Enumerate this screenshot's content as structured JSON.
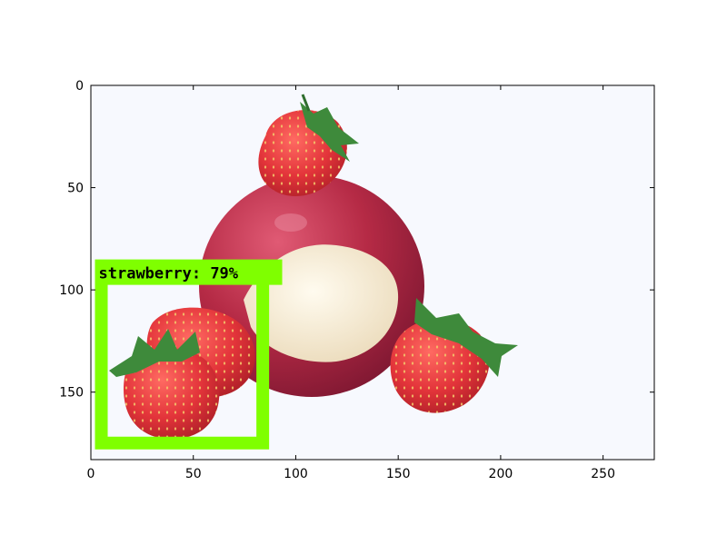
{
  "image": {
    "width_units": 275,
    "height_units": 183,
    "background_color": "#F7F9FE",
    "description_colors": {
      "apple_red": "#B52A45",
      "apple_flesh": "#F6EBD3",
      "strawberry_red": "#E3343A",
      "leaf_green": "#3E8A3B"
    }
  },
  "axes": {
    "x_range": [
      0,
      275
    ],
    "y_range": [
      183,
      0
    ],
    "x_ticks": [
      0,
      50,
      100,
      150,
      200,
      250
    ],
    "y_ticks": [
      0,
      50,
      100,
      150
    ],
    "x_tick_labels": [
      "0",
      "50",
      "100",
      "150",
      "200",
      "250"
    ],
    "y_tick_labels": [
      "0",
      "50",
      "100",
      "150"
    ],
    "frame_color": "#000000"
  },
  "detection": {
    "label": "strawberry: 79%",
    "class": "strawberry",
    "score_percent": 79,
    "box": {
      "x0": 2,
      "y0": 86,
      "x1": 87,
      "y1": 178
    },
    "box_color": "#7FFF00"
  }
}
